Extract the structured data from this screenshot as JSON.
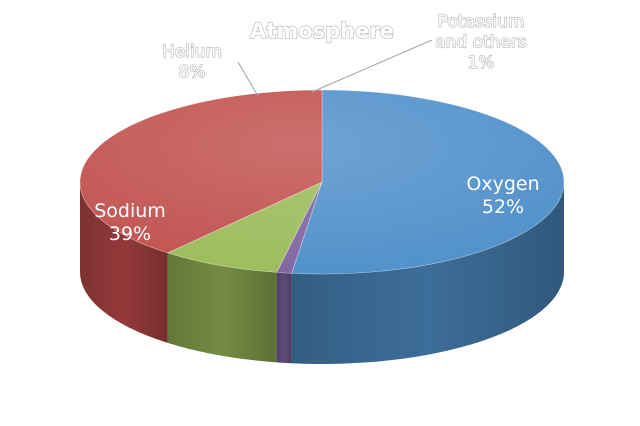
{
  "chart_data": {
    "type": "pie",
    "title": "Atmosphere",
    "slices": [
      {
        "name": "Oxygen",
        "label": "52%",
        "value": 52,
        "color": "#4f8fca",
        "side_color": "#3d6d9a"
      },
      {
        "name": "Potassium\nand others",
        "label": "1%",
        "value": 1,
        "color": "#8064a2",
        "side_color": "#5f4a7a"
      },
      {
        "name": "Helium",
        "label": "8%",
        "value": 8,
        "color": "#9bbb59",
        "side_color": "#748c42"
      },
      {
        "name": "Sodium",
        "label": "39%",
        "value": 39,
        "color": "#c0504d",
        "side_color": "#94393a"
      }
    ],
    "legend": "none",
    "three_d": true
  }
}
